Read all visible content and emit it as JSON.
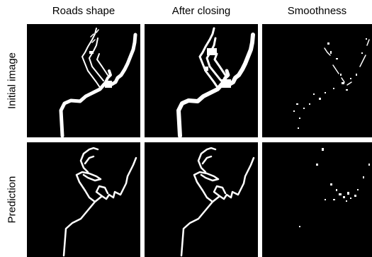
{
  "columns": [
    "Roads shape",
    "After closing",
    "Smoothness"
  ],
  "rows": [
    "Initial image",
    "Prediction"
  ],
  "colors": {
    "background": "#000000",
    "foreground": "#ffffff",
    "page": "#ffffff"
  }
}
